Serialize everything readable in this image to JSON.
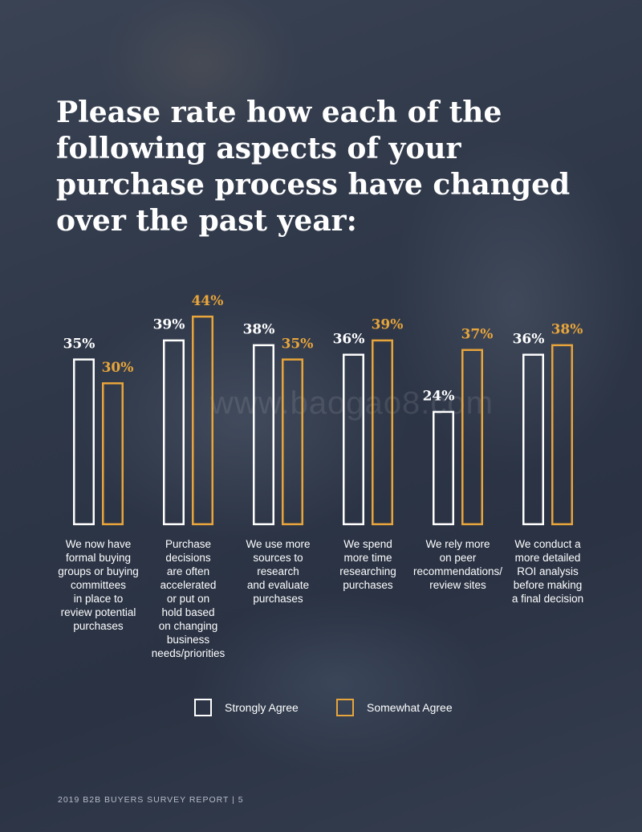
{
  "page": {
    "title": "Please rate how each of the following aspects of your purchase process have changed over the past year:",
    "footer": "2019 B2B BUYERS SURVEY REPORT | 5",
    "watermark": "www.baogao8.com"
  },
  "chart_data": {
    "type": "bar",
    "title": "Please rate how each of the following aspects of your purchase process have changed over the past year:",
    "categories": [
      "We now have\nformal buying\ngroups or buying\ncommittees\nin place to\nreview potential\npurchases",
      "Purchase\ndecisions\nare often\naccelerated\nor put on\nhold based\non changing\nbusiness\nneeds/priorities",
      "We use more\nsources to\nresearch\nand evaluate\npurchases",
      "We spend\nmore time\nresearching\npurchases",
      "We rely more\non peer\nrecommendations/\nreview sites",
      "We conduct a\nmore detailed\nROI analysis\nbefore making\na final decision"
    ],
    "series": [
      {
        "name": "Strongly Agree",
        "values": [
          35,
          39,
          38,
          36,
          24,
          36
        ],
        "labels": [
          "35%",
          "39%",
          "38%",
          "36%",
          "24%",
          "36%"
        ]
      },
      {
        "name": "Somewhat Agree",
        "values": [
          30,
          44,
          35,
          39,
          37,
          38
        ],
        "labels": [
          "30%",
          "44%",
          "35%",
          "39%",
          "37%",
          "38%"
        ]
      }
    ],
    "unit": "%",
    "ylim": [
      0,
      44
    ],
    "grid": false,
    "legend": "bottom-center",
    "colors": {
      "Strongly Agree": "#ffffff",
      "Somewhat Agree": "#e8a53b"
    }
  }
}
